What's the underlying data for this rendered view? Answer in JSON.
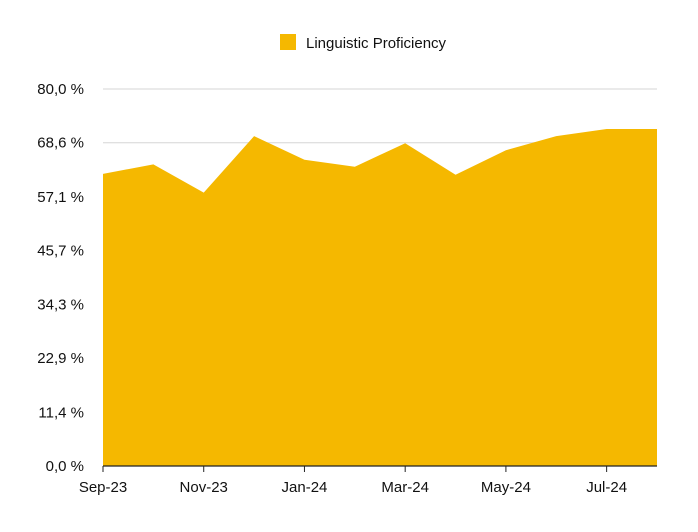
{
  "chart_data": {
    "type": "area",
    "title": "",
    "xlabel": "",
    "ylabel": "",
    "x": [
      "Sep-23",
      "Oct-23",
      "Nov-23",
      "Dec-23",
      "Jan-24",
      "Feb-24",
      "Mar-24",
      "Apr-24",
      "May-24",
      "Jun-24",
      "Jul-24",
      "Aug-24"
    ],
    "x_tick_labels": [
      "Sep-23",
      "Nov-23",
      "Jan-24",
      "Mar-24",
      "May-24",
      "Jul-24"
    ],
    "series": [
      {
        "name": "Linguistic Proficiency",
        "color": "#F5B800",
        "values": [
          62.0,
          64.0,
          58.0,
          70.0,
          65.0,
          63.5,
          68.5,
          61.8,
          67.0,
          70.0,
          71.5,
          71.5
        ]
      }
    ],
    "ylim": [
      0,
      80
    ],
    "y_ticks": [
      0,
      11.4,
      22.9,
      34.3,
      45.7,
      57.1,
      68.6,
      80.0
    ],
    "y_tick_labels": [
      "0,0 %",
      "11,4 %",
      "22,9 %",
      "34,3 %",
      "45,7 %",
      "57,1 %",
      "68,6 %",
      "80,0 %"
    ],
    "grid": true,
    "legend_position": "top-center"
  }
}
